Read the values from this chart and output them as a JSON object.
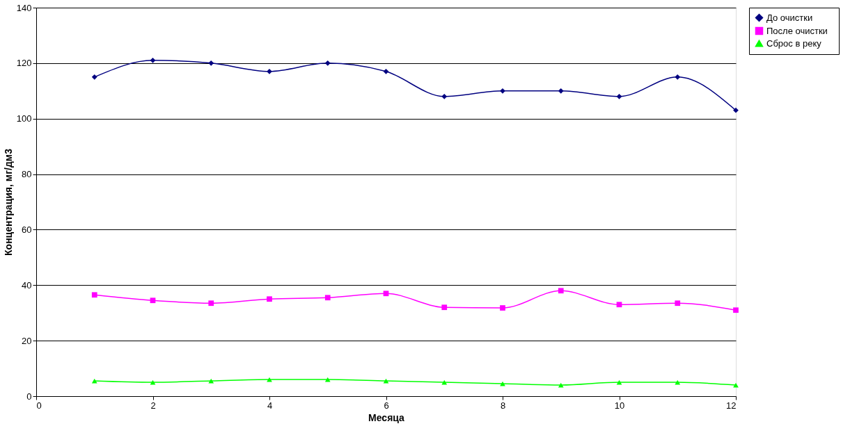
{
  "chart_data": {
    "type": "line",
    "xlabel": "Месяца",
    "ylabel": "Концентрация, мг/дм3",
    "x": [
      1,
      2,
      3,
      4,
      5,
      6,
      7,
      8,
      9,
      10,
      11,
      12
    ],
    "series": [
      {
        "name": "До   очистки",
        "color": "#000080",
        "marker": "diamond",
        "values": [
          115,
          121,
          120,
          117,
          120,
          117,
          108,
          110,
          110,
          108,
          115,
          103
        ]
      },
      {
        "name": "После   очистки",
        "color": "#ff00ff",
        "marker": "square",
        "values": [
          36.5,
          34.5,
          33.5,
          35,
          35.5,
          37,
          32,
          31.8,
          38,
          33,
          33.5,
          31
        ]
      },
      {
        "name": "Сброс в реку",
        "color": "#00ff00",
        "marker": "triangle",
        "values": [
          5.5,
          5,
          5.5,
          6,
          6,
          5.5,
          5,
          4.5,
          4,
          5,
          5,
          4
        ]
      }
    ],
    "xlim": [
      0,
      12
    ],
    "xticks": [
      0,
      2,
      4,
      6,
      8,
      10,
      12
    ],
    "ylim": [
      0,
      140
    ],
    "yticks": [
      0,
      20,
      40,
      60,
      80,
      100,
      120,
      140
    ],
    "grid": "y",
    "legend": "right",
    "line_style": "solid"
  }
}
